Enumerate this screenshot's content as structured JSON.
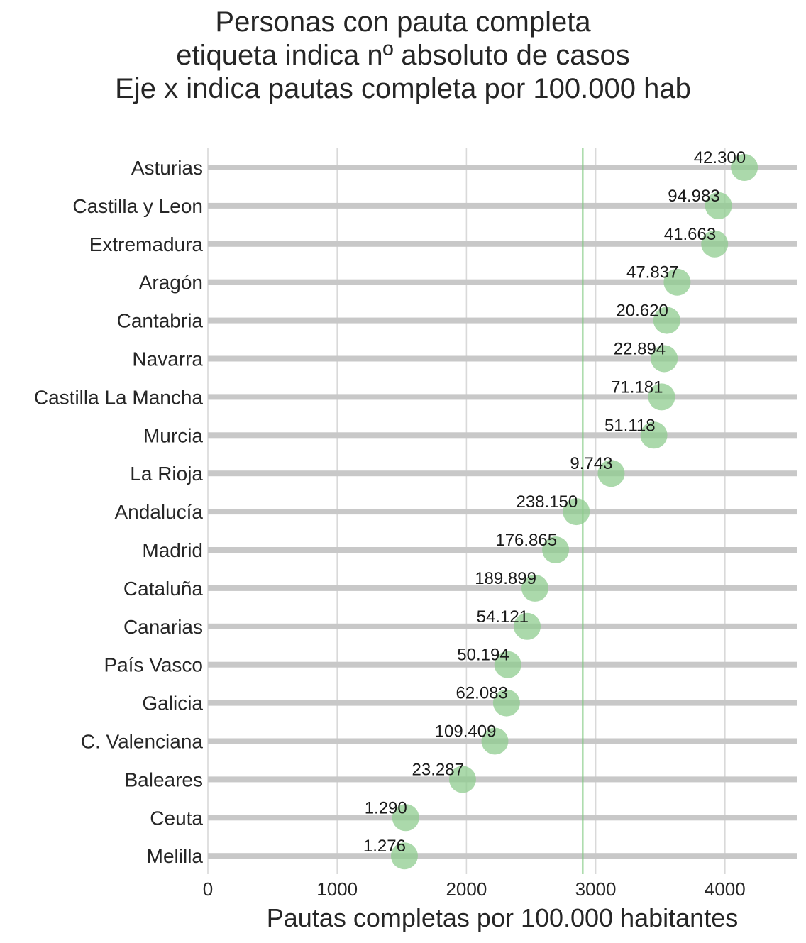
{
  "chart_data": {
    "type": "scatter",
    "title_lines": [
      "Personas con pauta completa",
      "etiqueta indica nº absoluto de casos",
      "Eje x indica pautas completa por 100.000 hab"
    ],
    "xlabel": "Pautas completas por 100.000 habitantes",
    "ylabel": "",
    "xlim": [
      0,
      4550
    ],
    "xticks": [
      "0",
      "1000",
      "2000",
      "3000",
      "4000"
    ],
    "grid": true,
    "reference_line": {
      "x": 2900,
      "color": "#7fc97f"
    },
    "marker_color": "#8fcc8f",
    "band_color": "#c8c8c8",
    "categories": [
      "Asturias",
      "Castilla y Leon",
      "Extremadura",
      "Aragón",
      "Cantabria",
      "Navarra",
      "Castilla La Mancha",
      "Murcia",
      "La Rioja",
      "Andalucía",
      "Madrid",
      "Cataluña",
      "Canarias",
      "País Vasco",
      "Galicia",
      "C. Valenciana",
      "Baleares",
      "Ceuta",
      "Melilla"
    ],
    "values": [
      4150,
      3950,
      3920,
      3630,
      3550,
      3530,
      3510,
      3450,
      3120,
      2850,
      2690,
      2530,
      2470,
      2320,
      2310,
      2220,
      1970,
      1530,
      1520
    ],
    "labels": [
      "42.300",
      "94.983",
      "41.663",
      "47.837",
      "20.620",
      "22.894",
      "71.181",
      "51.118",
      "9.743",
      "238.150",
      "176.865",
      "189.899",
      "54.121",
      "50.194",
      "62.083",
      "109.409",
      "23.287",
      "1.290",
      "1.276"
    ]
  }
}
